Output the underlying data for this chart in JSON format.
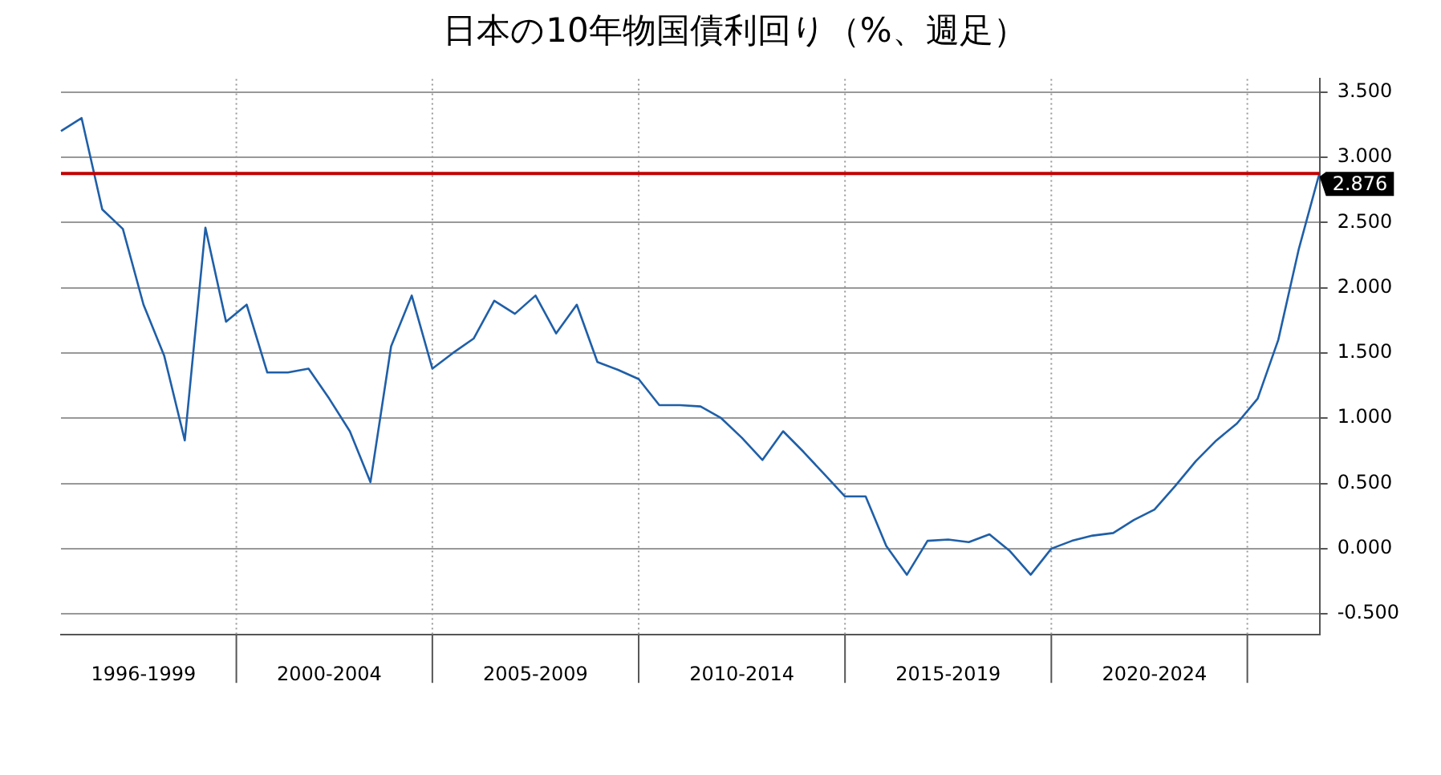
{
  "chart_data": {
    "type": "line",
    "title": "日本の10年物国債利回り（%、週足）",
    "categories": [
      null,
      null,
      null,
      null,
      "1996-1999",
      null,
      null,
      null,
      null,
      null,
      null,
      null,
      null,
      "2000-2004",
      null,
      null,
      null,
      null,
      null,
      null,
      null,
      null,
      null,
      "2005-2009",
      null,
      null,
      null,
      null,
      null,
      null,
      null,
      null,
      null,
      "2010-2014",
      null,
      null,
      null,
      null,
      null,
      null,
      null,
      null,
      null,
      "2015-2019",
      null,
      null,
      null,
      null,
      null,
      null,
      null,
      null,
      null,
      "2020-2024",
      null,
      null,
      null,
      null,
      null,
      null,
      null,
      null
    ],
    "series": [
      {
        "color": "#1f5fa8",
        "values": [
          3.2,
          3.3,
          2.6,
          2.45,
          1.87,
          1.48,
          0.83,
          2.46,
          1.74,
          1.87,
          1.35,
          1.35,
          1.38,
          1.15,
          0.9,
          0.51,
          1.55,
          1.94,
          1.38,
          1.5,
          1.61,
          1.9,
          1.8,
          1.94,
          1.65,
          1.87,
          1.43,
          1.37,
          1.3,
          1.1,
          1.1,
          1.09,
          1.0,
          0.85,
          0.68,
          0.9,
          0.74,
          0.57,
          0.4,
          0.4,
          0.02,
          -0.2,
          0.06,
          0.07,
          0.05,
          0.11,
          -0.02,
          -0.2,
          0.0,
          0.06,
          0.1,
          0.12,
          0.22,
          0.3,
          0.48,
          0.67,
          0.83,
          0.96,
          1.15,
          1.6,
          2.3,
          2.88
        ]
      }
    ],
    "ylim": [
      -0.66,
      3.6
    ],
    "yticks": [
      {
        "value": -0.5,
        "label": "-0.500"
      },
      {
        "value": 0,
        "label": "0.000"
      },
      {
        "value": 0.5,
        "label": "0.500"
      },
      {
        "value": 1,
        "label": "1.000"
      },
      {
        "value": 1.5,
        "label": "1.500"
      },
      {
        "value": 2,
        "label": "2.000"
      },
      {
        "value": 2.5,
        "label": "2.500"
      },
      {
        "value": 3,
        "label": "3.000"
      },
      {
        "value": 3.5,
        "label": "3.500"
      }
    ],
    "ref_lines": [
      {
        "axis": "y",
        "value": 2.876,
        "label": "2.876",
        "color": "#c00000"
      }
    ],
    "grid": true,
    "marker": "none",
    "line_style": "solid"
  }
}
